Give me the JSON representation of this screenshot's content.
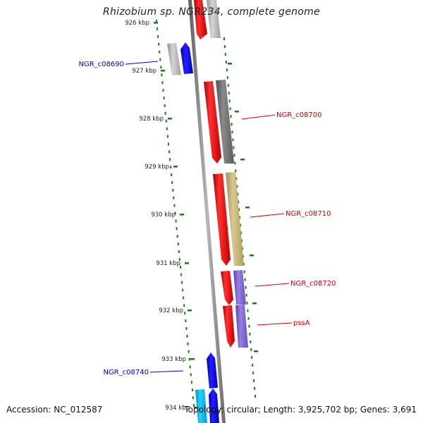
{
  "title": "Rhizobium sp. NGR234, complete genome",
  "footer": {
    "accession": "Accession: NC_012587",
    "stats": "Topology: circular; Length: 3,925,702 bp; Genes: 3,691"
  },
  "scale_ticks": [
    "926 kbp",
    "927 kbp",
    "928 kbp",
    "929 kbp",
    "930 kbp",
    "931 kbp",
    "932 kbp",
    "933 kbp",
    "934 kbp"
  ],
  "gene_labels": [
    {
      "text": "NGR_c08690",
      "color": "#0000cc"
    },
    {
      "text": "NGR_c08700",
      "color": "#cc0000"
    },
    {
      "text": "NGR_c08710",
      "color": "#cc0000"
    },
    {
      "text": "NGR_c08720",
      "color": "#cc0000"
    },
    {
      "text": "pssA",
      "color": "#cc0000"
    },
    {
      "text": "NGR_c08740",
      "color": "#0000cc"
    }
  ],
  "colors": {
    "backbone": "#8c8c8c",
    "red": "#ff0000",
    "blue": "#0000ee",
    "cyan": "#00bbee",
    "light_gray": "#b4b4b4",
    "dark_gray": "#6e6e6e",
    "khaki": "#c4b478",
    "purple": "#7b60cc",
    "tick_green": "#1a7a1a"
  }
}
